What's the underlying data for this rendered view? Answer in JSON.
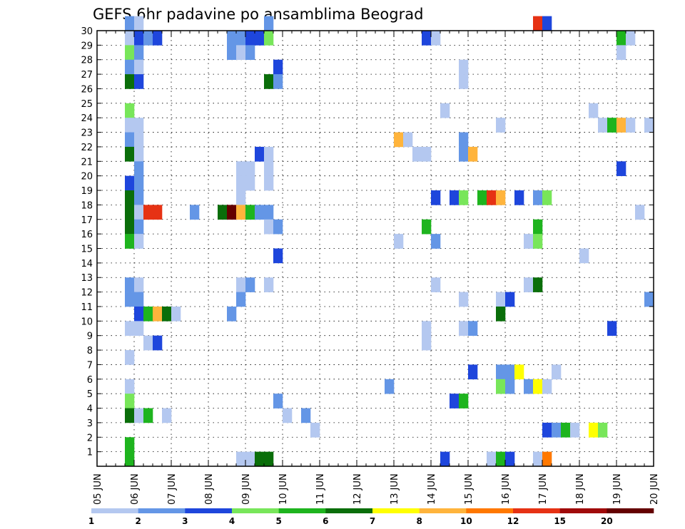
{
  "chart_data": {
    "type": "heatmap",
    "title": "GEFS 6hr padavine po ansamblima Beograd",
    "xlabel": "",
    "ylabel": "",
    "x_ticks": [
      "05 JUN",
      "06 JUN",
      "07 JUN",
      "08 JUN",
      "09 JUN",
      "10 JUN",
      "11 JUN",
      "12 JUN",
      "13 JUN",
      "14 JUN",
      "15 JUN",
      "16 JUN",
      "17 JUN",
      "18 JUN",
      "19 JUN",
      "20 JUN"
    ],
    "xlim": [
      0,
      60
    ],
    "ylim": [
      0,
      30
    ],
    "y_ticks": [
      1,
      2,
      3,
      4,
      5,
      6,
      7,
      8,
      9,
      10,
      11,
      12,
      13,
      14,
      15,
      16,
      17,
      18,
      19,
      20,
      21,
      22,
      23,
      24,
      25,
      26,
      27,
      28,
      29,
      30
    ],
    "grid": true,
    "colorbar": {
      "labels": [
        "1",
        "2",
        "3",
        "4",
        "5",
        "6",
        "7",
        "8",
        "10",
        "12",
        "15",
        "20"
      ],
      "colors": [
        "#b4c8f0",
        "#6496e6",
        "#1e46dc",
        "#78e65a",
        "#1eb41e",
        "#0a6e0a",
        "#ffff00",
        "#ffb43c",
        "#ff7800",
        "#e63214",
        "#a00a0a",
        "#640000"
      ]
    },
    "cells": [
      [
        3,
        30,
        1
      ],
      [
        4,
        30,
        0
      ],
      [
        18,
        30,
        1
      ],
      [
        47,
        30,
        9
      ],
      [
        48,
        30,
        2
      ],
      [
        3,
        29,
        0
      ],
      [
        4,
        29,
        2
      ],
      [
        5,
        29,
        1
      ],
      [
        6,
        29,
        2
      ],
      [
        14,
        29,
        1
      ],
      [
        15,
        29,
        1
      ],
      [
        16,
        29,
        2
      ],
      [
        17,
        29,
        2
      ],
      [
        18,
        29,
        3
      ],
      [
        35,
        29,
        2
      ],
      [
        36,
        29,
        0
      ],
      [
        56,
        29,
        4
      ],
      [
        57,
        29,
        0
      ],
      [
        3,
        28,
        3
      ],
      [
        4,
        28,
        1
      ],
      [
        14,
        28,
        1
      ],
      [
        15,
        28,
        0
      ],
      [
        16,
        28,
        1
      ],
      [
        56,
        28,
        0
      ],
      [
        3,
        27,
        1
      ],
      [
        4,
        27,
        0
      ],
      [
        19,
        27,
        2
      ],
      [
        39,
        27,
        0
      ],
      [
        3,
        26,
        5
      ],
      [
        4,
        26,
        2
      ],
      [
        18,
        26,
        5
      ],
      [
        19,
        26,
        1
      ],
      [
        39,
        26,
        0
      ],
      [
        3,
        24,
        3
      ],
      [
        37,
        24,
        0
      ],
      [
        53,
        24,
        0
      ],
      [
        3,
        23,
        0
      ],
      [
        4,
        23,
        0
      ],
      [
        43,
        23,
        0
      ],
      [
        54,
        23,
        0
      ],
      [
        55,
        23,
        4
      ],
      [
        56,
        23,
        7
      ],
      [
        57,
        23,
        0
      ],
      [
        59,
        23,
        0
      ],
      [
        3,
        22,
        1
      ],
      [
        4,
        22,
        0
      ],
      [
        32,
        22,
        7
      ],
      [
        33,
        22,
        0
      ],
      [
        39,
        22,
        1
      ],
      [
        3,
        21,
        5
      ],
      [
        4,
        21,
        0
      ],
      [
        17,
        21,
        2
      ],
      [
        18,
        21,
        0
      ],
      [
        34,
        21,
        0
      ],
      [
        35,
        21,
        0
      ],
      [
        39,
        21,
        1
      ],
      [
        40,
        21,
        7
      ],
      [
        4,
        20,
        1
      ],
      [
        15,
        20,
        0
      ],
      [
        16,
        20,
        0
      ],
      [
        18,
        20,
        0
      ],
      [
        56,
        20,
        2
      ],
      [
        3,
        19,
        2
      ],
      [
        4,
        19,
        1
      ],
      [
        15,
        19,
        0
      ],
      [
        16,
        19,
        0
      ],
      [
        18,
        19,
        0
      ],
      [
        3,
        18,
        5
      ],
      [
        4,
        18,
        1
      ],
      [
        15,
        18,
        0
      ],
      [
        36,
        18,
        2
      ],
      [
        38,
        18,
        2
      ],
      [
        39,
        18,
        3
      ],
      [
        41,
        18,
        4
      ],
      [
        42,
        18,
        9
      ],
      [
        43,
        18,
        7
      ],
      [
        45,
        18,
        2
      ],
      [
        47,
        18,
        1
      ],
      [
        48,
        18,
        3
      ],
      [
        3,
        17,
        5
      ],
      [
        4,
        17,
        0
      ],
      [
        5,
        17,
        9
      ],
      [
        6,
        17,
        9
      ],
      [
        10,
        17,
        1
      ],
      [
        13,
        17,
        5
      ],
      [
        14,
        17,
        11
      ],
      [
        15,
        17,
        7
      ],
      [
        16,
        17,
        4
      ],
      [
        17,
        17,
        1
      ],
      [
        18,
        17,
        1
      ],
      [
        58,
        17,
        0
      ],
      [
        3,
        16,
        5
      ],
      [
        4,
        16,
        1
      ],
      [
        18,
        16,
        0
      ],
      [
        19,
        16,
        1
      ],
      [
        35,
        16,
        4
      ],
      [
        47,
        16,
        4
      ],
      [
        3,
        15,
        4
      ],
      [
        4,
        15,
        0
      ],
      [
        32,
        15,
        0
      ],
      [
        36,
        15,
        1
      ],
      [
        46,
        15,
        0
      ],
      [
        47,
        15,
        3
      ],
      [
        19,
        14,
        2
      ],
      [
        52,
        14,
        0
      ],
      [
        3,
        12,
        1
      ],
      [
        4,
        12,
        0
      ],
      [
        15,
        12,
        0
      ],
      [
        16,
        12,
        1
      ],
      [
        18,
        12,
        0
      ],
      [
        36,
        12,
        0
      ],
      [
        46,
        12,
        0
      ],
      [
        47,
        12,
        5
      ],
      [
        3,
        11,
        1
      ],
      [
        4,
        11,
        1
      ],
      [
        15,
        11,
        1
      ],
      [
        39,
        11,
        0
      ],
      [
        43,
        11,
        0
      ],
      [
        44,
        11,
        2
      ],
      [
        59,
        11,
        1
      ],
      [
        4,
        10,
        2
      ],
      [
        5,
        10,
        4
      ],
      [
        6,
        10,
        7
      ],
      [
        7,
        10,
        5
      ],
      [
        8,
        10,
        0
      ],
      [
        14,
        10,
        1
      ],
      [
        43,
        10,
        5
      ],
      [
        3,
        9,
        0
      ],
      [
        4,
        9,
        0
      ],
      [
        35,
        9,
        0
      ],
      [
        39,
        9,
        0
      ],
      [
        40,
        9,
        1
      ],
      [
        55,
        9,
        2
      ],
      [
        5,
        8,
        0
      ],
      [
        6,
        8,
        2
      ],
      [
        35,
        8,
        0
      ],
      [
        3,
        7,
        0
      ],
      [
        40,
        6,
        2
      ],
      [
        43,
        6,
        1
      ],
      [
        44,
        6,
        1
      ],
      [
        45,
        6,
        6
      ],
      [
        49,
        6,
        0
      ],
      [
        3,
        5,
        0
      ],
      [
        31,
        5,
        1
      ],
      [
        43,
        5,
        3
      ],
      [
        44,
        5,
        1
      ],
      [
        46,
        5,
        1
      ],
      [
        47,
        5,
        6
      ],
      [
        48,
        5,
        0
      ],
      [
        3,
        4,
        3
      ],
      [
        19,
        4,
        1
      ],
      [
        38,
        4,
        2
      ],
      [
        39,
        4,
        4
      ],
      [
        3,
        3,
        5
      ],
      [
        4,
        3,
        0
      ],
      [
        5,
        3,
        4
      ],
      [
        7,
        3,
        0
      ],
      [
        20,
        3,
        0
      ],
      [
        22,
        3,
        1
      ],
      [
        23,
        2,
        0
      ],
      [
        48,
        2,
        2
      ],
      [
        49,
        2,
        1
      ],
      [
        50,
        2,
        4
      ],
      [
        51,
        2,
        0
      ],
      [
        53,
        2,
        6
      ],
      [
        54,
        2,
        3
      ],
      [
        3,
        1,
        4
      ],
      [
        3,
        0,
        4
      ],
      [
        15,
        0,
        0
      ],
      [
        16,
        0,
        0
      ],
      [
        17,
        0,
        5
      ],
      [
        18,
        0,
        5
      ],
      [
        37,
        0,
        2
      ],
      [
        42,
        0,
        0
      ],
      [
        43,
        0,
        4
      ],
      [
        44,
        0,
        2
      ],
      [
        47,
        0,
        0
      ],
      [
        48,
        0,
        8
      ]
    ]
  }
}
